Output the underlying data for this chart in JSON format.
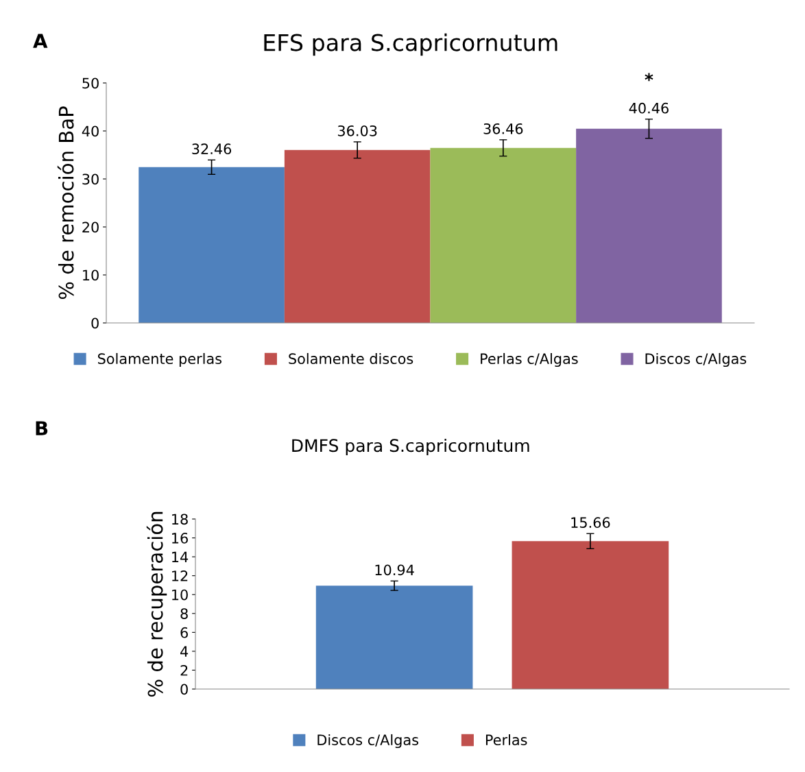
{
  "chart_data": [
    {
      "type": "bar",
      "title": "EFS para S.capricornutum",
      "ylabel": "% de remoción BaP",
      "categories": [
        null
      ],
      "series": [
        {
          "name": "Solamente perlas",
          "color": "#4f81bd",
          "values": [
            32.46
          ],
          "errors": [
            1.5
          ]
        },
        {
          "name": "Solamente discos",
          "color": "#c0504d",
          "values": [
            36.03
          ],
          "errors": [
            1.7
          ]
        },
        {
          "name": "Perlas c/Algas",
          "color": "#9bbb59",
          "values": [
            36.46
          ],
          "errors": [
            1.7
          ]
        },
        {
          "name": "Discos c/Algas",
          "color": "#8064a2",
          "values": [
            40.46
          ],
          "errors": [
            2.0
          ]
        }
      ],
      "ylim": [
        0,
        50
      ],
      "yticks": [
        0,
        10,
        20,
        30,
        40,
        50
      ],
      "data_labels": true,
      "grid": false,
      "legend": "bottom",
      "annotations": [
        "A",
        "*"
      ]
    },
    {
      "type": "bar",
      "title": "DMFS para S.capricornutum",
      "ylabel": "% de recuperación",
      "categories": [
        null
      ],
      "series": [
        {
          "name": "Discos c/Algas",
          "color": "#4f81bd",
          "values": [
            10.94
          ],
          "errors": [
            0.5
          ]
        },
        {
          "name": "Perlas",
          "color": "#c0504d",
          "values": [
            15.66
          ],
          "errors": [
            0.8
          ]
        }
      ],
      "ylim": [
        0,
        18
      ],
      "yticks": [
        0,
        2,
        4,
        6,
        8,
        10,
        12,
        14,
        16,
        18
      ],
      "data_labels": true,
      "grid": false,
      "legend": "bottom",
      "annotations": [
        "B"
      ]
    }
  ]
}
